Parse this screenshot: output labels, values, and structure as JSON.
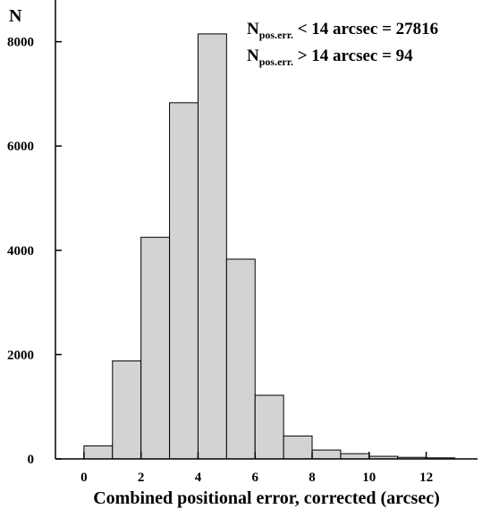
{
  "chart_data": {
    "type": "bar",
    "title": "",
    "xlabel": "Combined positional error, corrected (arcsec)",
    "ylabel": "N",
    "bin_edges": [
      0,
      1,
      2,
      3,
      4,
      5,
      6,
      7,
      8,
      9,
      10,
      11,
      12,
      13
    ],
    "values": [
      250,
      1880,
      4250,
      6830,
      8150,
      3830,
      1220,
      440,
      170,
      100,
      50,
      30,
      20
    ],
    "xlim": [
      -1,
      13.8
    ],
    "ylim": [
      0,
      8800
    ],
    "xticks": [
      0,
      2,
      4,
      6,
      8,
      10,
      12
    ],
    "yticks": [
      0,
      2000,
      4000,
      6000,
      8000
    ],
    "bar_color": "#d3d3d3",
    "edge_color": "#000000",
    "legend_position": "top-right",
    "annotations": [
      {
        "main": "N",
        "sub": "pos.err.",
        "rest": " < 14 arcsec = 27816"
      },
      {
        "main": "N",
        "sub": "pos.err.",
        "rest": " > 14 arcsec = 94"
      }
    ]
  }
}
